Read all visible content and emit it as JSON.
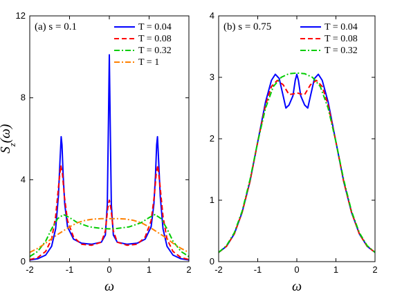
{
  "chart_data": [
    {
      "type": "line",
      "panel_label": "(a) s = 0.1",
      "xlabel": "ω",
      "ylabel": "S_z(ω)",
      "xlim": [
        -2,
        2
      ],
      "ylim": [
        0,
        12
      ],
      "xticks": [
        "-2",
        "-1",
        "0",
        "1",
        "2"
      ],
      "yticks": [
        "0",
        "4",
        "8",
        "12"
      ],
      "legend_position": "top-right",
      "series": [
        {
          "name": "T = 0.04",
          "color": "#0000ff",
          "dash": "solid",
          "points": [
            [
              -2,
              0.08
            ],
            [
              -1.8,
              0.14
            ],
            [
              -1.6,
              0.32
            ],
            [
              -1.45,
              0.75
            ],
            [
              -1.35,
              1.6
            ],
            [
              -1.28,
              3.2
            ],
            [
              -1.24,
              4.9
            ],
            [
              -1.21,
              6.1
            ],
            [
              -1.19,
              5.7
            ],
            [
              -1.16,
              4.2
            ],
            [
              -1.12,
              2.8
            ],
            [
              -1.05,
              1.7
            ],
            [
              -0.9,
              1.1
            ],
            [
              -0.7,
              0.9
            ],
            [
              -0.45,
              0.85
            ],
            [
              -0.2,
              0.95
            ],
            [
              -0.1,
              1.3
            ],
            [
              -0.05,
              2.8
            ],
            [
              -0.02,
              7.0
            ],
            [
              0,
              10.1
            ],
            [
              0.02,
              7.0
            ],
            [
              0.05,
              2.8
            ],
            [
              0.1,
              1.3
            ],
            [
              0.2,
              0.95
            ],
            [
              0.45,
              0.85
            ],
            [
              0.7,
              0.9
            ],
            [
              0.9,
              1.1
            ],
            [
              1.05,
              1.7
            ],
            [
              1.12,
              2.8
            ],
            [
              1.16,
              4.2
            ],
            [
              1.19,
              5.7
            ],
            [
              1.21,
              6.1
            ],
            [
              1.24,
              4.9
            ],
            [
              1.28,
              3.2
            ],
            [
              1.35,
              1.6
            ],
            [
              1.45,
              0.75
            ],
            [
              1.6,
              0.32
            ],
            [
              1.8,
              0.14
            ],
            [
              2,
              0.08
            ]
          ]
        },
        {
          "name": "T = 0.08",
          "color": "#ff0000",
          "dash": "dashed",
          "points": [
            [
              -2,
              0.1
            ],
            [
              -1.8,
              0.2
            ],
            [
              -1.6,
              0.5
            ],
            [
              -1.45,
              1.1
            ],
            [
              -1.35,
              2.2
            ],
            [
              -1.27,
              3.8
            ],
            [
              -1.22,
              4.7
            ],
            [
              -1.18,
              4.3
            ],
            [
              -1.13,
              3.2
            ],
            [
              -1.05,
              2.0
            ],
            [
              -0.9,
              1.2
            ],
            [
              -0.7,
              0.85
            ],
            [
              -0.45,
              0.8
            ],
            [
              -0.2,
              0.95
            ],
            [
              -0.1,
              1.5
            ],
            [
              -0.04,
              2.6
            ],
            [
              0,
              3.0
            ],
            [
              0.04,
              2.6
            ],
            [
              0.1,
              1.5
            ],
            [
              0.2,
              0.95
            ],
            [
              0.45,
              0.8
            ],
            [
              0.7,
              0.85
            ],
            [
              0.9,
              1.2
            ],
            [
              1.05,
              2.0
            ],
            [
              1.13,
              3.2
            ],
            [
              1.18,
              4.3
            ],
            [
              1.22,
              4.7
            ],
            [
              1.27,
              3.8
            ],
            [
              1.35,
              2.2
            ],
            [
              1.45,
              1.1
            ],
            [
              1.6,
              0.5
            ],
            [
              1.8,
              0.2
            ],
            [
              2,
              0.1
            ]
          ]
        },
        {
          "name": "T = 0.32",
          "color": "#00cc00",
          "dash": "dashdot",
          "points": [
            [
              -2,
              0.25
            ],
            [
              -1.8,
              0.5
            ],
            [
              -1.6,
              1.0
            ],
            [
              -1.45,
              1.6
            ],
            [
              -1.3,
              2.1
            ],
            [
              -1.15,
              2.3
            ],
            [
              -1.0,
              2.15
            ],
            [
              -0.8,
              1.9
            ],
            [
              -0.5,
              1.7
            ],
            [
              -0.2,
              1.62
            ],
            [
              0,
              1.6
            ],
            [
              0.2,
              1.62
            ],
            [
              0.5,
              1.7
            ],
            [
              0.8,
              1.9
            ],
            [
              1.0,
              2.15
            ],
            [
              1.15,
              2.3
            ],
            [
              1.3,
              2.1
            ],
            [
              1.45,
              1.6
            ],
            [
              1.6,
              1.0
            ],
            [
              1.8,
              0.5
            ],
            [
              2,
              0.25
            ]
          ]
        },
        {
          "name": "T = 1",
          "color": "#ff8000",
          "dash": "dashdot",
          "points": [
            [
              -2,
              0.45
            ],
            [
              -1.8,
              0.65
            ],
            [
              -1.6,
              0.9
            ],
            [
              -1.4,
              1.2
            ],
            [
              -1.2,
              1.45
            ],
            [
              -1.0,
              1.7
            ],
            [
              -0.8,
              1.9
            ],
            [
              -0.6,
              2.02
            ],
            [
              -0.4,
              2.08
            ],
            [
              -0.2,
              2.1
            ],
            [
              0,
              2.1
            ],
            [
              0.2,
              2.1
            ],
            [
              0.4,
              2.08
            ],
            [
              0.6,
              2.02
            ],
            [
              0.8,
              1.9
            ],
            [
              1.0,
              1.7
            ],
            [
              1.2,
              1.45
            ],
            [
              1.4,
              1.2
            ],
            [
              1.6,
              0.9
            ],
            [
              1.8,
              0.65
            ],
            [
              2,
              0.45
            ]
          ]
        }
      ]
    },
    {
      "type": "line",
      "panel_label": "(b) s = 0.75",
      "xlabel": "ω",
      "ylabel": "",
      "xlim": [
        -2,
        2
      ],
      "ylim": [
        0,
        4
      ],
      "xticks": [
        "-2",
        "-1",
        "0",
        "1",
        "2"
      ],
      "yticks": [
        "0",
        "1",
        "2",
        "3",
        "4"
      ],
      "legend_position": "top-right",
      "series": [
        {
          "name": "T = 0.04",
          "color": "#0000ff",
          "dash": "solid",
          "points": [
            [
              -2,
              0.15
            ],
            [
              -1.8,
              0.25
            ],
            [
              -1.6,
              0.45
            ],
            [
              -1.4,
              0.8
            ],
            [
              -1.2,
              1.3
            ],
            [
              -1.0,
              1.95
            ],
            [
              -0.8,
              2.6
            ],
            [
              -0.65,
              2.95
            ],
            [
              -0.55,
              3.05
            ],
            [
              -0.45,
              2.98
            ],
            [
              -0.35,
              2.7
            ],
            [
              -0.28,
              2.5
            ],
            [
              -0.2,
              2.55
            ],
            [
              -0.1,
              2.7
            ],
            [
              -0.04,
              2.95
            ],
            [
              0,
              3.05
            ],
            [
              0.04,
              2.95
            ],
            [
              0.1,
              2.7
            ],
            [
              0.2,
              2.55
            ],
            [
              0.28,
              2.5
            ],
            [
              0.35,
              2.7
            ],
            [
              0.45,
              2.98
            ],
            [
              0.55,
              3.05
            ],
            [
              0.65,
              2.95
            ],
            [
              0.8,
              2.6
            ],
            [
              1.0,
              1.95
            ],
            [
              1.2,
              1.3
            ],
            [
              1.4,
              0.8
            ],
            [
              1.6,
              0.45
            ],
            [
              1.8,
              0.25
            ],
            [
              2,
              0.15
            ]
          ]
        },
        {
          "name": "T = 0.08",
          "color": "#ff0000",
          "dash": "dashed",
          "points": [
            [
              -2,
              0.15
            ],
            [
              -1.8,
              0.25
            ],
            [
              -1.6,
              0.45
            ],
            [
              -1.4,
              0.8
            ],
            [
              -1.2,
              1.3
            ],
            [
              -1.0,
              1.95
            ],
            [
              -0.8,
              2.55
            ],
            [
              -0.65,
              2.85
            ],
            [
              -0.5,
              2.95
            ],
            [
              -0.35,
              2.88
            ],
            [
              -0.2,
              2.72
            ],
            [
              -0.08,
              2.73
            ],
            [
              0,
              2.75
            ],
            [
              0.08,
              2.73
            ],
            [
              0.2,
              2.72
            ],
            [
              0.35,
              2.88
            ],
            [
              0.5,
              2.95
            ],
            [
              0.65,
              2.85
            ],
            [
              0.8,
              2.55
            ],
            [
              1.0,
              1.95
            ],
            [
              1.2,
              1.3
            ],
            [
              1.4,
              0.8
            ],
            [
              1.6,
              0.45
            ],
            [
              1.8,
              0.25
            ],
            [
              2,
              0.15
            ]
          ]
        },
        {
          "name": "T = 0.32",
          "color": "#00cc00",
          "dash": "dashdot",
          "points": [
            [
              -2,
              0.15
            ],
            [
              -1.8,
              0.26
            ],
            [
              -1.6,
              0.47
            ],
            [
              -1.4,
              0.82
            ],
            [
              -1.2,
              1.33
            ],
            [
              -1.0,
              1.95
            ],
            [
              -0.8,
              2.5
            ],
            [
              -0.6,
              2.85
            ],
            [
              -0.4,
              3.0
            ],
            [
              -0.2,
              3.06
            ],
            [
              0,
              3.07
            ],
            [
              0.2,
              3.06
            ],
            [
              0.4,
              3.0
            ],
            [
              0.6,
              2.85
            ],
            [
              0.8,
              2.5
            ],
            [
              1.0,
              1.95
            ],
            [
              1.2,
              1.33
            ],
            [
              1.4,
              0.82
            ],
            [
              1.6,
              0.47
            ],
            [
              1.8,
              0.26
            ],
            [
              2,
              0.15
            ]
          ]
        }
      ]
    }
  ]
}
